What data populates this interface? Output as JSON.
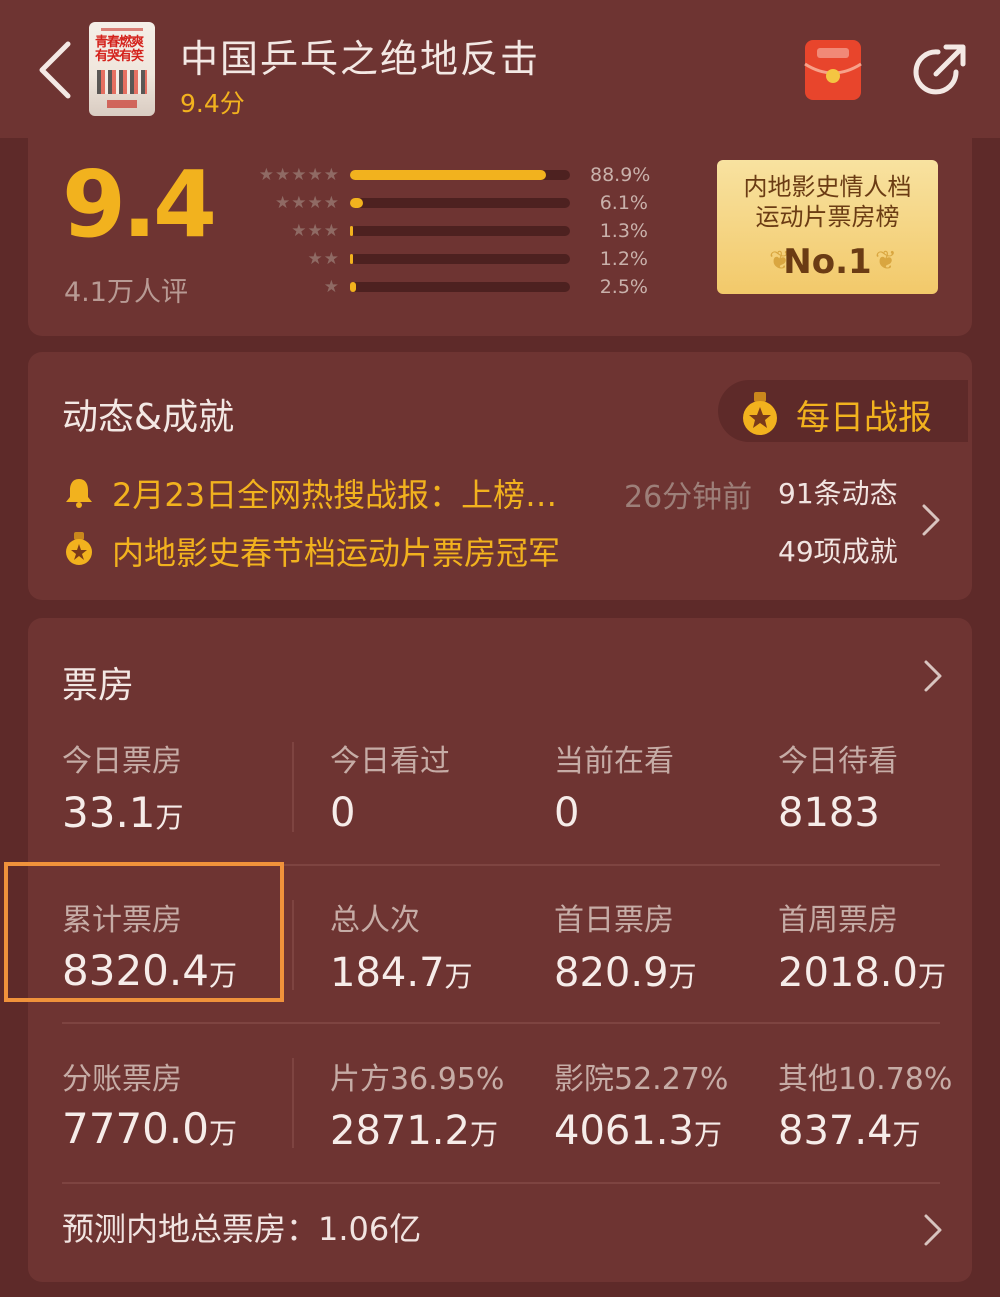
{
  "header": {
    "title": "中国乒乓之绝地反击",
    "score_text": "9.4分",
    "poster_text": "青春燃爽 有哭有笑"
  },
  "rating": {
    "score": "9.4",
    "rater_count": "4.1万人评",
    "distribution": [
      {
        "stars": "★★★★★",
        "percent": "88.9%",
        "value": 88.9
      },
      {
        "stars": "★★★★",
        "percent": "6.1%",
        "value": 6.1
      },
      {
        "stars": "★★★",
        "percent": "1.3%",
        "value": 1.3
      },
      {
        "stars": "★★",
        "percent": "1.2%",
        "value": 1.2
      },
      {
        "stars": "★",
        "percent": "2.5%",
        "value": 2.5
      }
    ],
    "award": {
      "line1": "内地影史情人档",
      "line2": "运动片票房榜",
      "rank": "No.1"
    }
  },
  "dynamics": {
    "title": "动态&成就",
    "daily_report_label": "每日战报",
    "news": "2月23日全网热搜战报：上榜…",
    "news_time": "26分钟前",
    "achievement": "内地影史春节档运动片票房冠军",
    "updates_count": "91条动态",
    "achievements_count": "49项成就"
  },
  "boxoffice": {
    "title": "票房",
    "rows": [
      [
        {
          "label": "今日票房",
          "value": "33.1",
          "unit": "万"
        },
        {
          "label": "今日看过",
          "value": "0",
          "unit": ""
        },
        {
          "label": "当前在看",
          "value": "0",
          "unit": ""
        },
        {
          "label": "今日待看",
          "value": "8183",
          "unit": ""
        }
      ],
      [
        {
          "label": "累计票房",
          "value": "8320.4",
          "unit": "万"
        },
        {
          "label": "总人次",
          "value": "184.7",
          "unit": "万"
        },
        {
          "label": "首日票房",
          "value": "820.9",
          "unit": "万"
        },
        {
          "label": "首周票房",
          "value": "2018.0",
          "unit": "万"
        }
      ],
      [
        {
          "label": "分账票房",
          "value": "7770.0",
          "unit": "万"
        },
        {
          "label": "片方36.95%",
          "value": "2871.2",
          "unit": "万"
        },
        {
          "label": "影院52.27%",
          "value": "4061.3",
          "unit": "万"
        },
        {
          "label": "其他10.78%",
          "value": "837.4",
          "unit": "万"
        }
      ]
    ],
    "forecast": "预测内地总票房：1.06亿"
  },
  "colors": {
    "background": "#5e2a29",
    "card": "#6e3432",
    "accent_gold": "#f2b21e",
    "highlight_orange": "#f0923b"
  },
  "icons": [
    "back-arrow-icon",
    "red-packet-icon",
    "share-icon",
    "bell-icon",
    "medal-icon",
    "chevron-right-icon"
  ]
}
